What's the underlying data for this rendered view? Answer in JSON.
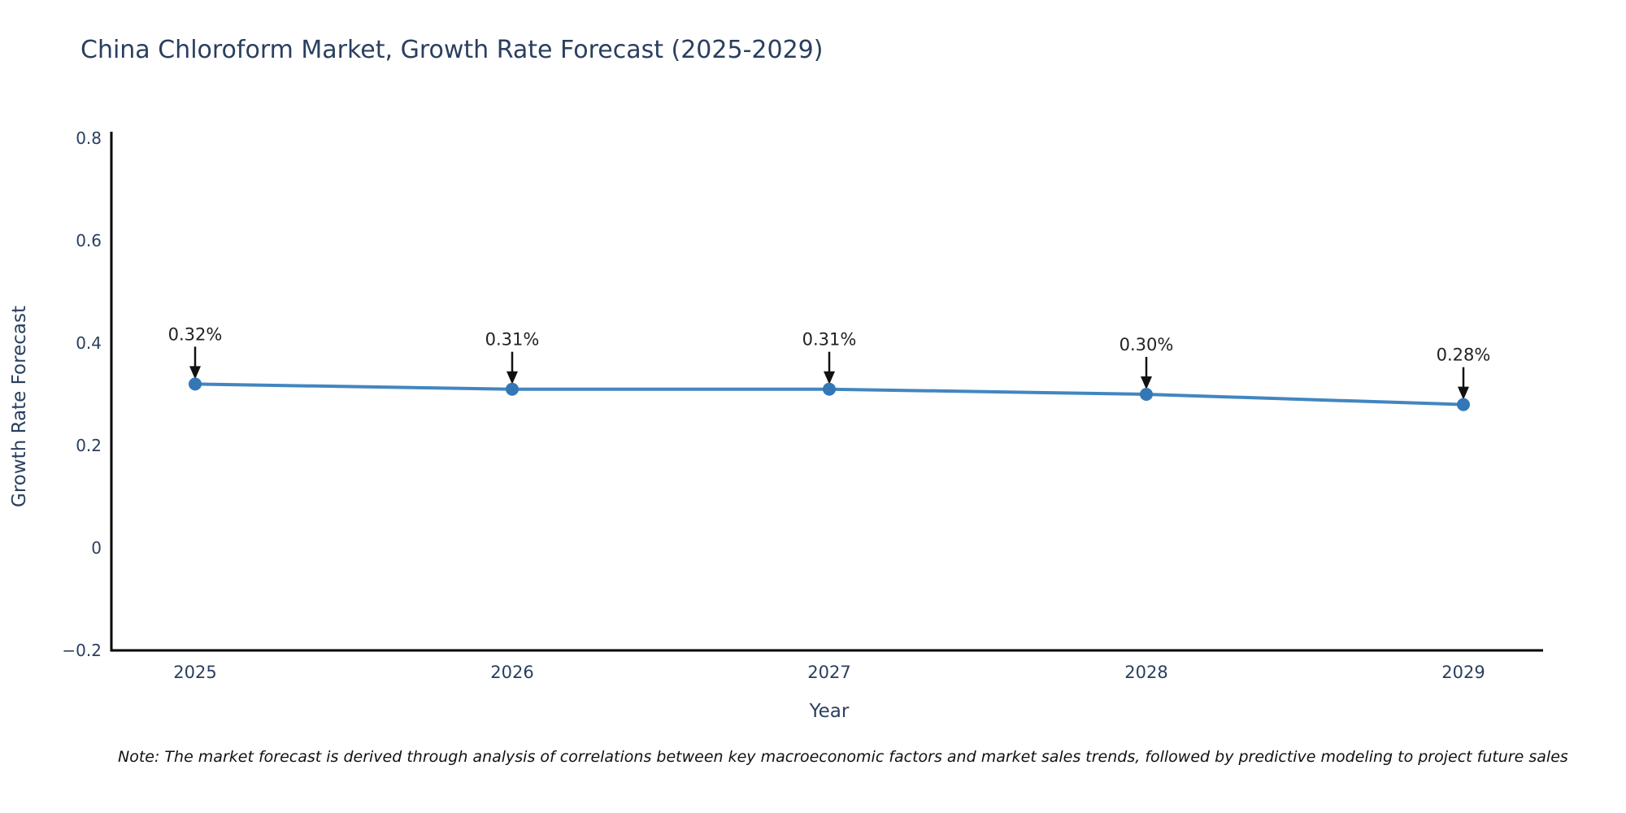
{
  "title": "China Chloroform Market, Growth Rate Forecast (2025-2029)",
  "note": "Note: The market forecast is derived through analysis of correlations between key macroeconomic factors and market sales trends, followed by predictive modeling to project future sales",
  "chart_data": {
    "type": "line",
    "title": "China Chloroform Market, Growth Rate Forecast (2025-2029)",
    "xlabel": "Year",
    "ylabel": "Growth Rate Forecast",
    "categories": [
      "2025",
      "2026",
      "2027",
      "2028",
      "2029"
    ],
    "series": [
      {
        "name": "Growth Rate Forecast",
        "values": [
          0.32,
          0.31,
          0.31,
          0.3,
          0.28
        ]
      }
    ],
    "point_labels": [
      "0.32%",
      "0.31%",
      "0.31%",
      "0.30%",
      "0.28%"
    ],
    "ylim": [
      -0.2,
      0.8
    ],
    "yticks": [
      0.8,
      0.6,
      0.4,
      0.2,
      0,
      -0.2
    ],
    "ytick_labels": [
      "0.8",
      "0.6",
      "0.4",
      "0.2",
      "0",
      "−0.2"
    ],
    "grid": false,
    "legend": "none",
    "annotation_arrows": true,
    "colors": {
      "line": "#4286c0",
      "marker": "#3377b6",
      "axis": "#000000",
      "tick_text": "#2a3f5f",
      "annotation_text": "#222222",
      "arrow": "#111111",
      "title_text": "#2a3f5f",
      "note_text": "#111111",
      "background": "#ffffff"
    }
  }
}
